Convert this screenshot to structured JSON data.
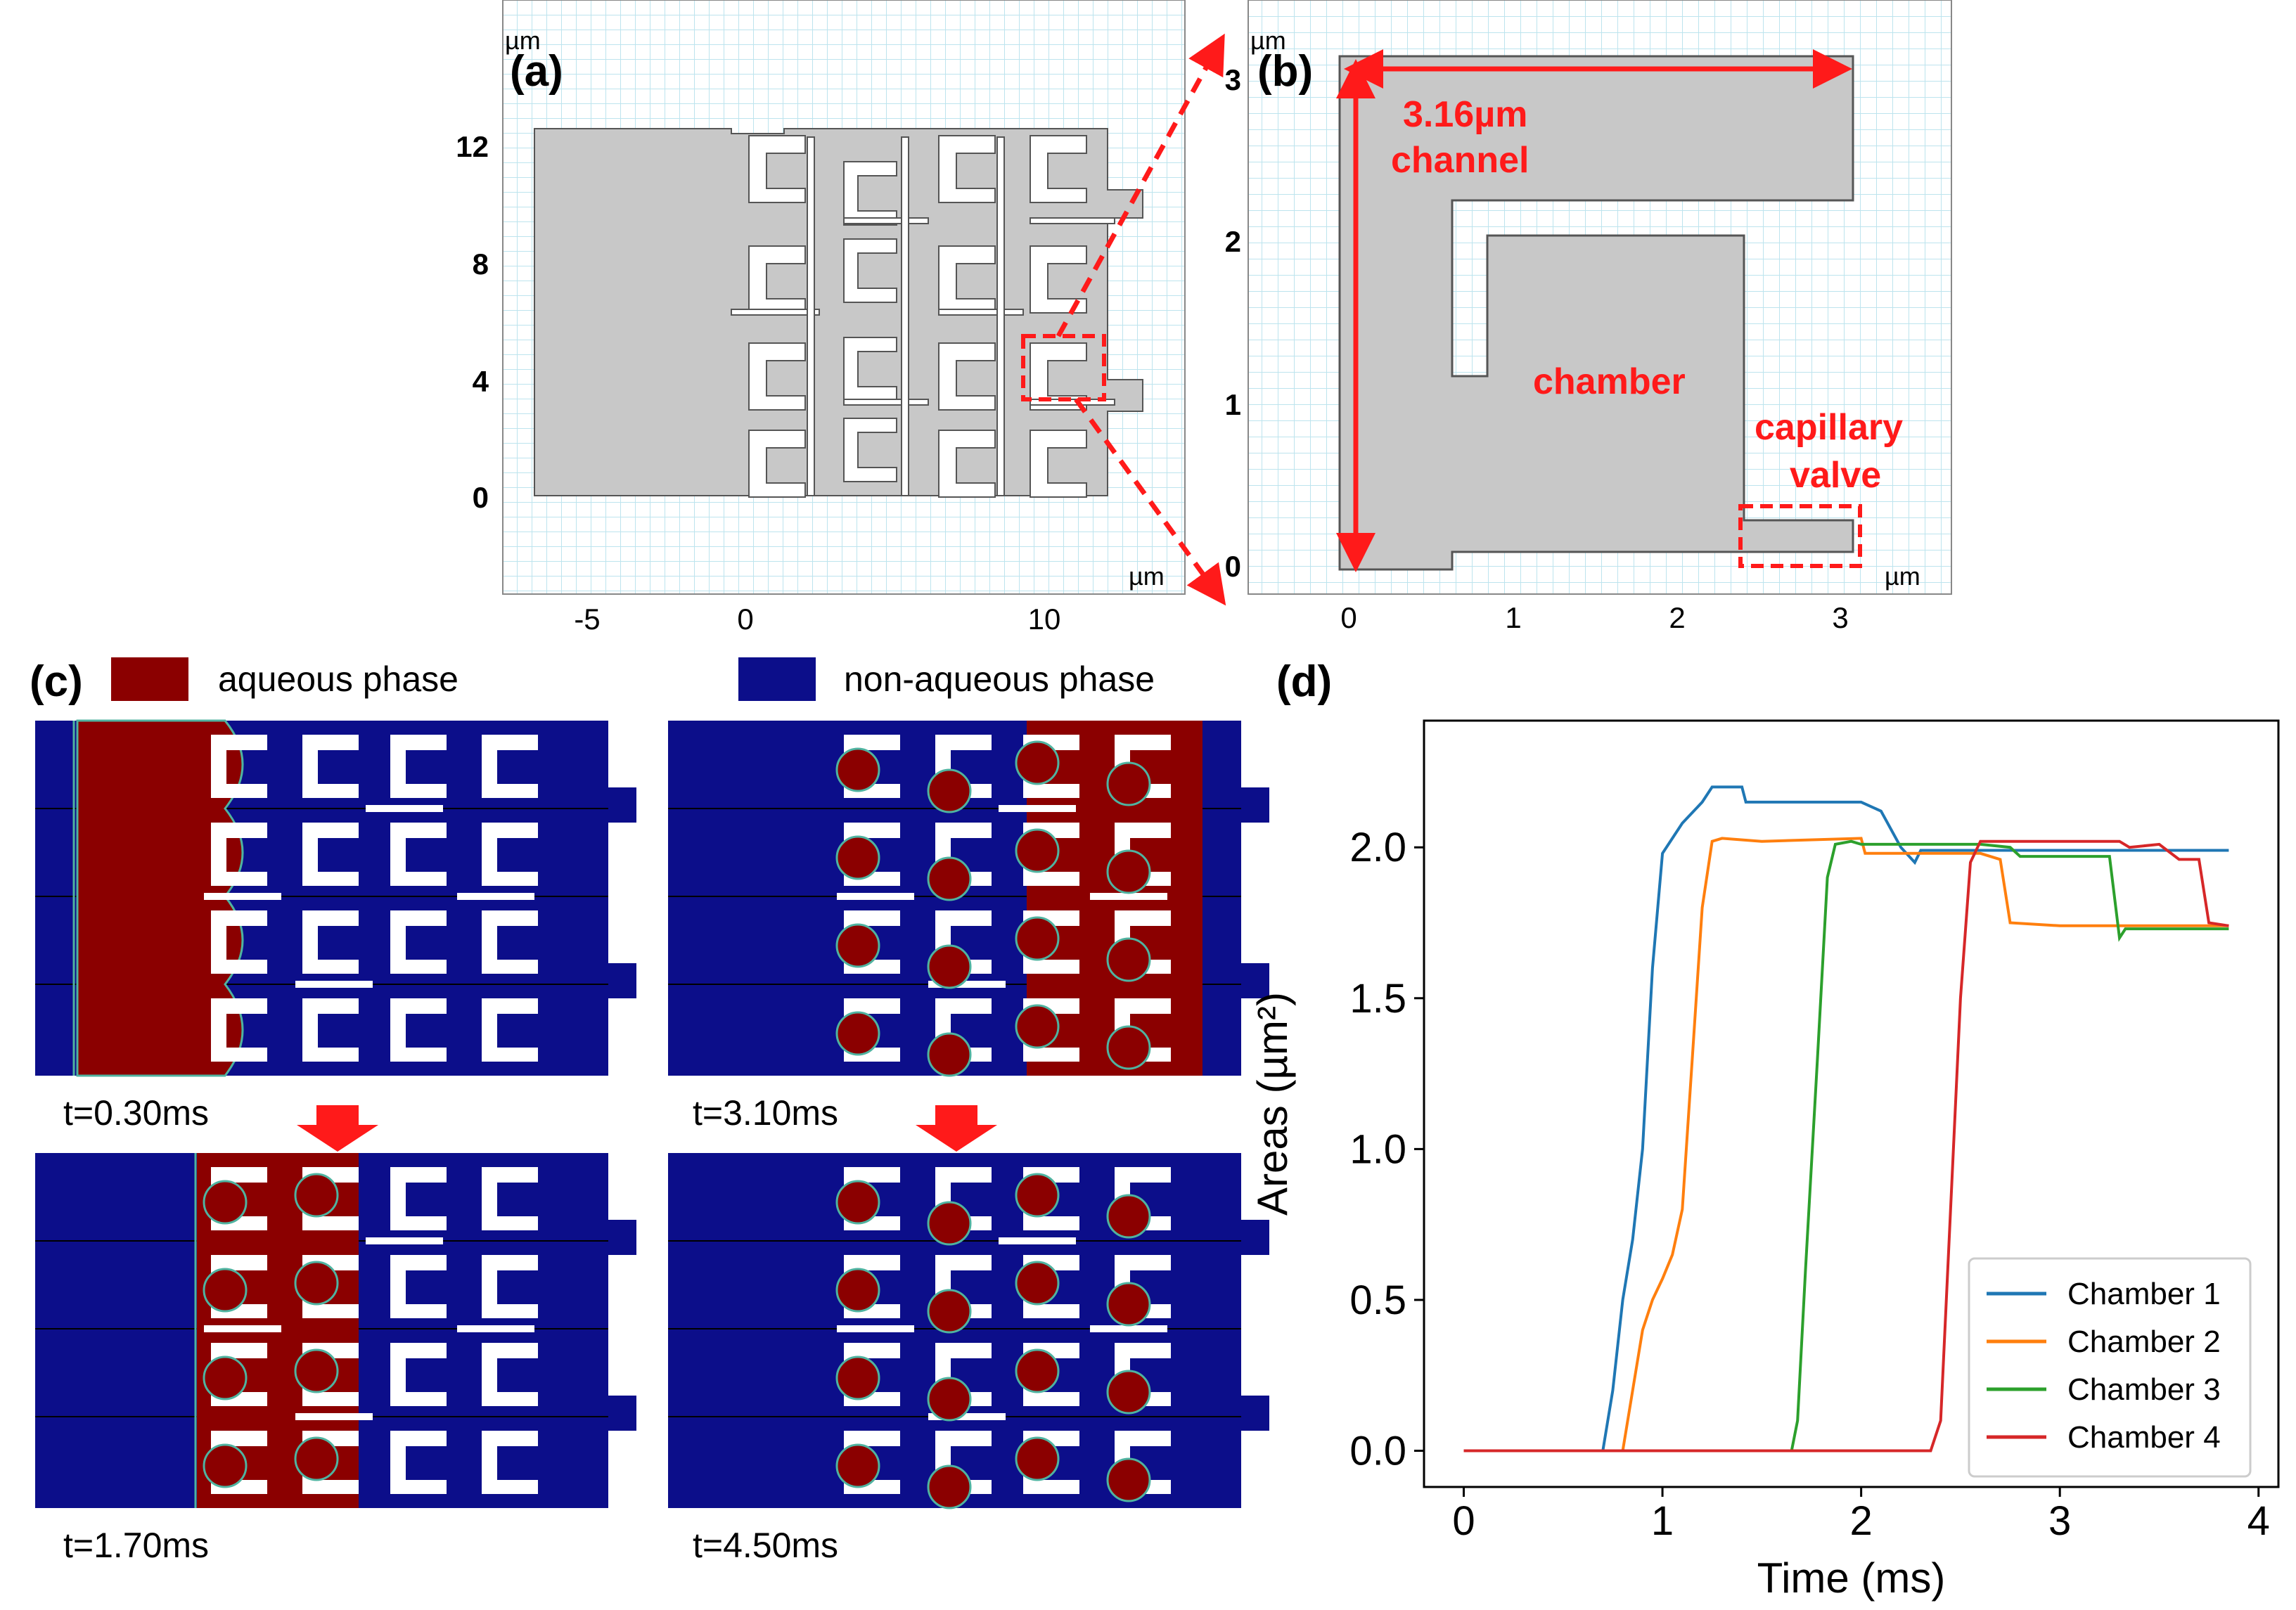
{
  "panel_a": {
    "label": "(a)",
    "unit_top": "µm",
    "unit_right": "µm",
    "y_ticks": [
      "12",
      "8",
      "4",
      "0"
    ],
    "x_ticks": [
      "-5",
      "0",
      "10"
    ]
  },
  "panel_b": {
    "label": "(b)",
    "unit_top": "µm",
    "unit_right": "µm",
    "y_ticks": [
      "3",
      "2",
      "1",
      "0"
    ],
    "x_ticks": [
      "0",
      "1",
      "2",
      "3"
    ],
    "annotation_length": "3.16µm",
    "annotation_channel": "channel",
    "annotation_chamber": "chamber",
    "annotation_valve_1": "capillary",
    "annotation_valve_2": "valve"
  },
  "panel_c": {
    "label": "(c)",
    "legend_aqueous": "aqueous phase",
    "legend_nonaqueous": "non-aqueous phase",
    "t1": "t=0.30ms",
    "t2": "t=3.10ms",
    "t3": "t=1.70ms",
    "t4": "t=4.50ms"
  },
  "panel_d": {
    "label": "(d)"
  },
  "colors": {
    "aqueous": "#8b0000",
    "non_aqueous": "#0c0e8a",
    "geometry": "#c8c8c8",
    "highlight": "#ff1a1a"
  },
  "chart_data": {
    "type": "line",
    "xlabel": "Time (ms)",
    "ylabel": "Areas (µm²)",
    "xlim": [
      -0.2,
      4.1
    ],
    "ylim": [
      -0.12,
      2.42
    ],
    "x_ticks": [
      "0",
      "1",
      "2",
      "3",
      "4"
    ],
    "y_ticks": [
      "0.0",
      "0.5",
      "1.0",
      "1.5",
      "2.0"
    ],
    "legend_position": "lower-right",
    "series": [
      {
        "name": "Chamber 1",
        "color": "#1f77b4",
        "points": [
          [
            0,
            0
          ],
          [
            0.7,
            0
          ],
          [
            0.75,
            0.2
          ],
          [
            0.8,
            0.5
          ],
          [
            0.85,
            0.7
          ],
          [
            0.9,
            1.0
          ],
          [
            0.95,
            1.6
          ],
          [
            1.0,
            1.98
          ],
          [
            1.1,
            2.08
          ],
          [
            1.2,
            2.15
          ],
          [
            1.25,
            2.2
          ],
          [
            1.3,
            2.2
          ],
          [
            1.4,
            2.2
          ],
          [
            1.42,
            2.15
          ],
          [
            1.8,
            2.15
          ],
          [
            2.0,
            2.15
          ],
          [
            2.1,
            2.12
          ],
          [
            2.2,
            2.0
          ],
          [
            2.27,
            1.95
          ],
          [
            2.3,
            1.99
          ],
          [
            2.6,
            1.99
          ],
          [
            3.0,
            1.99
          ],
          [
            3.85,
            1.99
          ]
        ]
      },
      {
        "name": "Chamber 2",
        "color": "#ff7f0e",
        "points": [
          [
            0,
            0
          ],
          [
            0.8,
            0
          ],
          [
            0.85,
            0.2
          ],
          [
            0.9,
            0.4
          ],
          [
            0.95,
            0.5
          ],
          [
            1.0,
            0.57
          ],
          [
            1.05,
            0.65
          ],
          [
            1.1,
            0.8
          ],
          [
            1.15,
            1.3
          ],
          [
            1.2,
            1.8
          ],
          [
            1.25,
            2.02
          ],
          [
            1.3,
            2.03
          ],
          [
            1.5,
            2.02
          ],
          [
            2.0,
            2.03
          ],
          [
            2.02,
            1.98
          ],
          [
            2.6,
            1.98
          ],
          [
            2.7,
            1.96
          ],
          [
            2.75,
            1.75
          ],
          [
            3.0,
            1.74
          ],
          [
            3.85,
            1.74
          ]
        ]
      },
      {
        "name": "Chamber 3",
        "color": "#2ca02c",
        "points": [
          [
            0,
            0
          ],
          [
            1.65,
            0
          ],
          [
            1.68,
            0.1
          ],
          [
            1.72,
            0.6
          ],
          [
            1.78,
            1.3
          ],
          [
            1.83,
            1.9
          ],
          [
            1.87,
            2.01
          ],
          [
            1.95,
            2.02
          ],
          [
            2.0,
            2.01
          ],
          [
            2.6,
            2.01
          ],
          [
            2.75,
            2.0
          ],
          [
            2.8,
            1.97
          ],
          [
            3.25,
            1.97
          ],
          [
            3.3,
            1.7
          ],
          [
            3.33,
            1.73
          ],
          [
            3.85,
            1.73
          ]
        ]
      },
      {
        "name": "Chamber 4",
        "color": "#d62728",
        "points": [
          [
            0,
            0
          ],
          [
            2.35,
            0
          ],
          [
            2.4,
            0.1
          ],
          [
            2.45,
            0.8
          ],
          [
            2.5,
            1.5
          ],
          [
            2.55,
            1.95
          ],
          [
            2.6,
            2.02
          ],
          [
            2.8,
            2.02
          ],
          [
            3.3,
            2.02
          ],
          [
            3.35,
            2.0
          ],
          [
            3.5,
            2.01
          ],
          [
            3.6,
            1.96
          ],
          [
            3.7,
            1.96
          ],
          [
            3.75,
            1.75
          ],
          [
            3.85,
            1.74
          ]
        ]
      }
    ]
  }
}
